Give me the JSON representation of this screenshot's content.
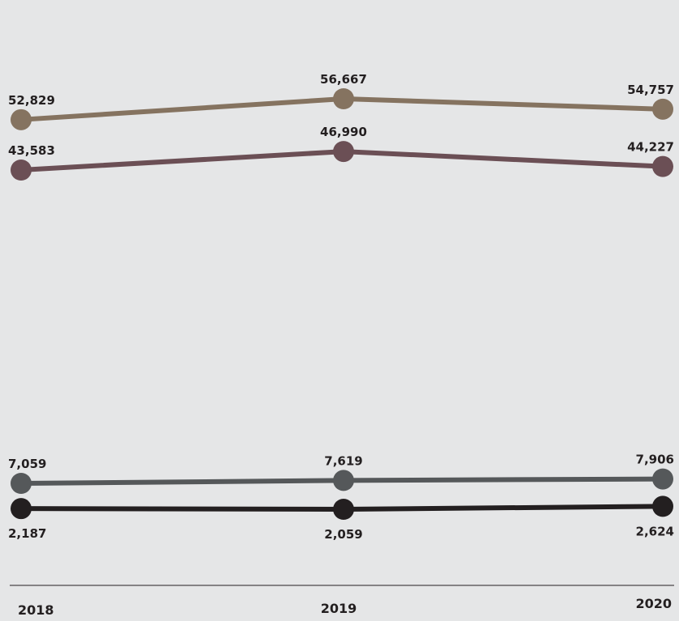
{
  "chart_data": {
    "type": "line",
    "title": "",
    "xlabel": "",
    "ylabel": "",
    "categories": [
      "2018",
      "2019",
      "2020"
    ],
    "ylim": [
      0,
      60000
    ],
    "grid": false,
    "legend": "none",
    "series": [
      {
        "values": [
          52829,
          56667,
          54757
        ],
        "labels": [
          "52,829",
          "56,667",
          "54,757"
        ],
        "color": "#857360",
        "label_position": "above"
      },
      {
        "values": [
          43583,
          46990,
          44227
        ],
        "labels": [
          "43,583",
          "46,990",
          "44,227"
        ],
        "color": "#6b4f55",
        "label_position": "above"
      },
      {
        "values": [
          7059,
          7619,
          7906
        ],
        "labels": [
          "7,059",
          "7,619",
          "7,906"
        ],
        "color": "#55585a",
        "label_position": "above"
      },
      {
        "values": [
          2187,
          2059,
          2624
        ],
        "labels": [
          "2,187",
          "2,059",
          "2,624"
        ],
        "color": "#231f20",
        "label_position": "below"
      }
    ]
  }
}
